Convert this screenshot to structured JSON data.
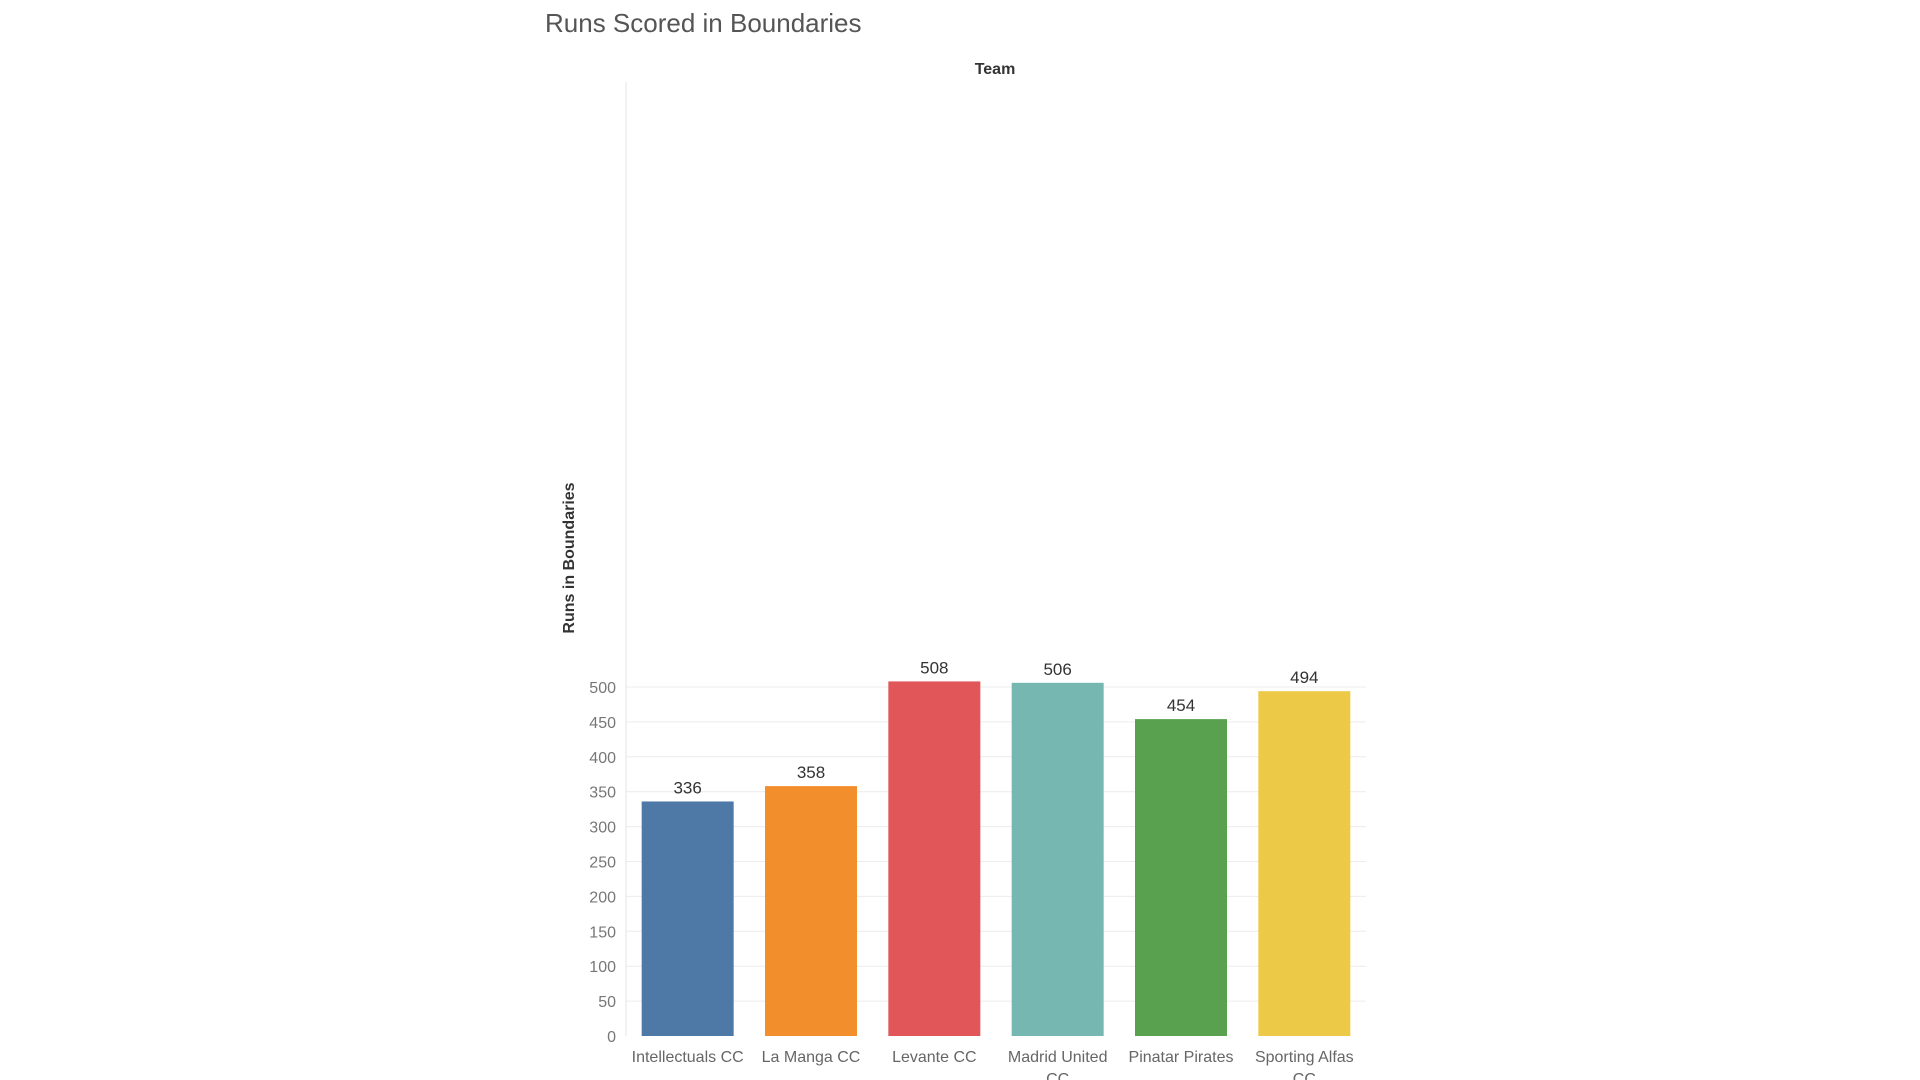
{
  "chart_data": {
    "type": "bar",
    "title": "Runs Scored in Boundaries",
    "column_header": "Team",
    "ylabel": "Runs in Boundaries",
    "xlabel": "",
    "ylim": [
      0,
      550
    ],
    "yticks": [
      0,
      50,
      100,
      150,
      200,
      250,
      300,
      350,
      400,
      450,
      500
    ],
    "grid": true,
    "legend": "none",
    "categories": [
      [
        "Intellectuals CC"
      ],
      [
        "La Manga CC"
      ],
      [
        "Levante CC"
      ],
      [
        "Madrid United",
        "CC"
      ],
      [
        "Pinatar Pirates"
      ],
      [
        "Sporting Alfas",
        "CC"
      ]
    ],
    "values": [
      336,
      358,
      508,
      506,
      454,
      494
    ],
    "colors": [
      "#4e79a7",
      "#f28e2b",
      "#e15759",
      "#76b7b2",
      "#59a14f",
      "#edc948"
    ]
  }
}
